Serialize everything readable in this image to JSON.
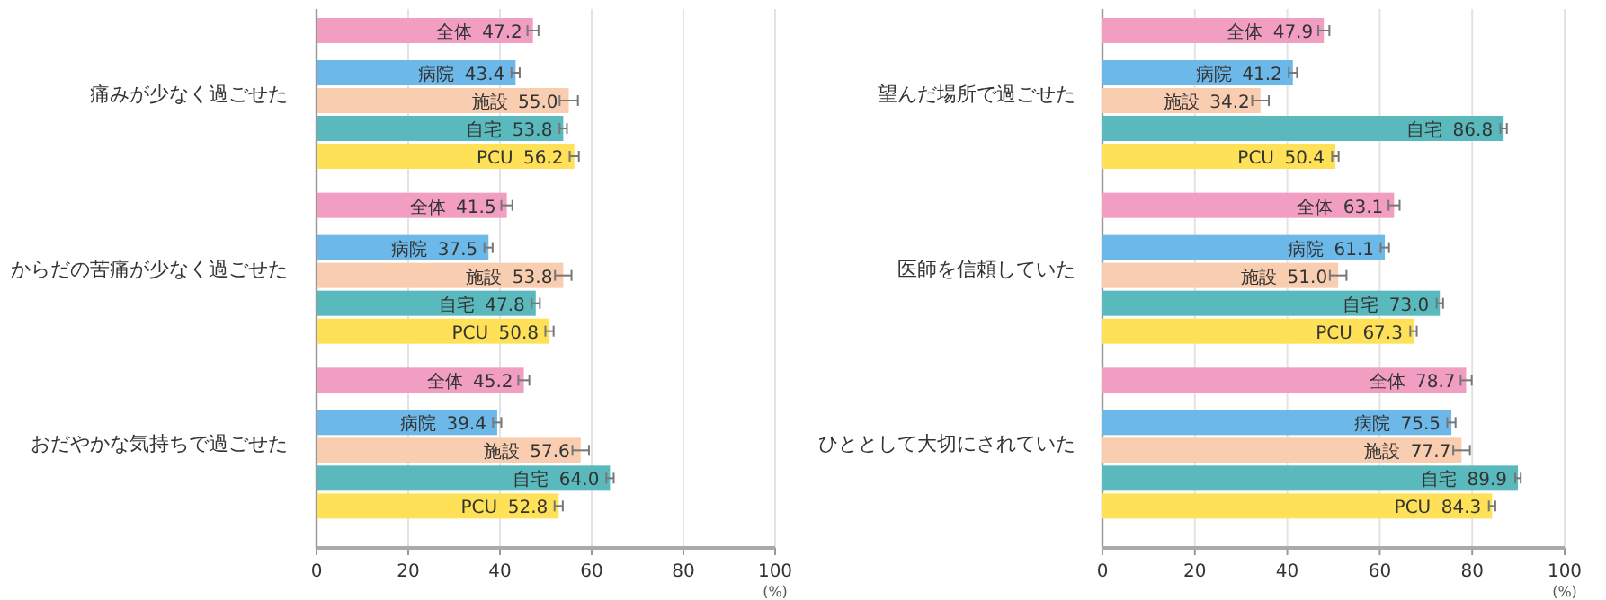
{
  "chart_data": [
    {
      "type": "bar",
      "orientation": "horizontal",
      "xlabel": "(%)",
      "grid": "x",
      "legend": false,
      "categories": [
        "痛みが少なく過ごせた",
        "からだの苦痛が少なく過ごせた",
        "おだやかな気持ちで過ごせた"
      ],
      "xlim": [
        0,
        100
      ],
      "xticks": [
        0,
        20,
        40,
        60,
        80,
        100
      ],
      "series": [
        {
          "name": "全体",
          "color": "#f19ec2",
          "values": [
            47.2,
            41.5,
            45.2
          ],
          "value_labels": [
            "47.2",
            "41.5",
            "45.2"
          ],
          "errors": [
            1.2,
            1.2,
            1.2
          ]
        },
        {
          "name": "病院",
          "color": "#6cb8e8",
          "values": [
            43.4,
            37.5,
            39.4
          ],
          "value_labels": [
            "43.4",
            "37.5",
            "39.4"
          ],
          "errors": [
            0.9,
            0.9,
            0.9
          ]
        },
        {
          "name": "施設",
          "color": "#f9cdb0",
          "values": [
            55.0,
            53.8,
            57.6
          ],
          "value_labels": [
            "55.0",
            "53.8",
            "57.6"
          ],
          "errors": [
            2,
            1.8,
            1.8
          ]
        },
        {
          "name": "自宅",
          "color": "#5ab9bd",
          "values": [
            53.8,
            47.8,
            64.0
          ],
          "value_labels": [
            "53.8",
            "47.8",
            "64.0"
          ],
          "errors": [
            0.8,
            0.9,
            0.8
          ]
        },
        {
          "name": "PCU",
          "color": "#fee157",
          "values": [
            56.2,
            50.8,
            52.8
          ],
          "value_labels": [
            "56.2",
            "50.8",
            "52.8"
          ],
          "errors": [
            1,
            0.9,
            0.9
          ]
        }
      ]
    },
    {
      "type": "bar",
      "orientation": "horizontal",
      "xlabel": "(%)",
      "grid": "x",
      "legend": false,
      "categories": [
        "望んだ場所で過ごせた",
        "医師を信頼していた",
        "ひととして大切にされていた"
      ],
      "xlim": [
        0,
        100
      ],
      "xticks": [
        0,
        20,
        40,
        60,
        80,
        100
      ],
      "series": [
        {
          "name": "全体",
          "color": "#f19ec2",
          "values": [
            47.9,
            63.1,
            78.7
          ],
          "value_labels": [
            "47.9",
            "63.1",
            "78.7"
          ],
          "errors": [
            1.2,
            1.2,
            1.2
          ]
        },
        {
          "name": "病院",
          "color": "#6cb8e8",
          "values": [
            41.2,
            61.1,
            75.5
          ],
          "value_labels": [
            "41.2",
            "61.1",
            "75.5"
          ],
          "errors": [
            0.9,
            0.9,
            0.9
          ]
        },
        {
          "name": "施設",
          "color": "#f9cdb0",
          "values": [
            34.2,
            51.0,
            77.7
          ],
          "value_labels": [
            "34.2",
            "51.0",
            "77.7"
          ],
          "errors": [
            1.8,
            1.8,
            1.8
          ]
        },
        {
          "name": "自宅",
          "color": "#5ab9bd",
          "values": [
            86.8,
            73.0,
            89.9
          ],
          "value_labels": [
            "86.8",
            "73.0",
            "89.9"
          ],
          "errors": [
            0.7,
            0.7,
            0.6
          ]
        },
        {
          "name": "PCU",
          "color": "#fee157",
          "values": [
            50.4,
            67.3,
            84.3
          ],
          "value_labels": [
            "50.4",
            "67.3",
            "84.3"
          ],
          "errors": [
            0.7,
            0.7,
            0.7
          ]
        }
      ]
    }
  ]
}
